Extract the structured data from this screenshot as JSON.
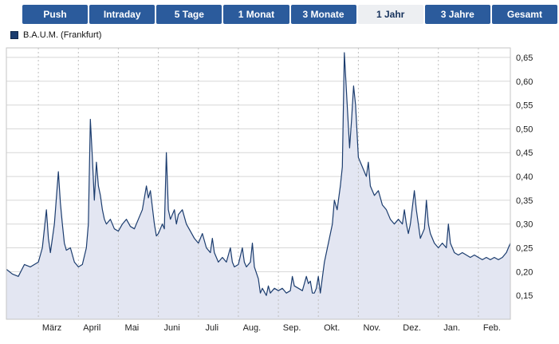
{
  "tabs": {
    "active_index": 5,
    "items": [
      {
        "label": "Push"
      },
      {
        "label": "Intraday"
      },
      {
        "label": "5 Tage"
      },
      {
        "label": "1 Monat"
      },
      {
        "label": "3 Monate"
      },
      {
        "label": "1 Jahr"
      },
      {
        "label": "3 Jahre"
      },
      {
        "label": "Gesamt"
      }
    ]
  },
  "legend": {
    "label": "B.A.U.M. (Frankfurt)"
  },
  "colors": {
    "tab_bg": "#2b5b9c",
    "tab_text": "#ffffff",
    "tab_active_bg": "#edeff2",
    "tab_active_text": "#16325c",
    "line": "#1b3c6e",
    "fill": "#e3e6f2",
    "grid": "#d7d7d7",
    "vgrid": "#bfbfbf",
    "frame": "#c6c6c6",
    "axis_text": "#222222"
  },
  "chart_data": {
    "type": "area",
    "title": "B.A.U.M. (Frankfurt)",
    "series_name": "B.A.U.M. (Frankfurt)",
    "xlabel": "",
    "ylabel": "",
    "range_selected": "1 Jahr",
    "x_labels": [
      "März",
      "April",
      "Mai",
      "Juni",
      "Juli",
      "Aug.",
      "Sep.",
      "Okt.",
      "Nov.",
      "Dez.",
      "Jan.",
      "Feb."
    ],
    "y_ticks": [
      0.65,
      0.6,
      0.55,
      0.5,
      0.45,
      0.4,
      0.35,
      0.3,
      0.25,
      0.2,
      0.15
    ],
    "y_tick_labels": [
      "0,65",
      "0,60",
      "0,55",
      "0,50",
      "0,45",
      "0,40",
      "0,35",
      "0,30",
      "0,25",
      "0,20",
      "0,15"
    ],
    "ylim": [
      0.1,
      0.67
    ],
    "xlim": [
      0,
      12.6
    ],
    "month_boundaries": [
      0.8,
      1.8,
      2.8,
      3.8,
      4.8,
      5.8,
      6.8,
      7.8,
      8.8,
      9.8,
      10.8,
      11.8
    ],
    "points": [
      [
        0.0,
        0.205
      ],
      [
        0.15,
        0.195
      ],
      [
        0.3,
        0.19
      ],
      [
        0.45,
        0.215
      ],
      [
        0.6,
        0.21
      ],
      [
        0.7,
        0.215
      ],
      [
        0.8,
        0.22
      ],
      [
        0.9,
        0.25
      ],
      [
        1.0,
        0.33
      ],
      [
        1.05,
        0.27
      ],
      [
        1.1,
        0.24
      ],
      [
        1.2,
        0.3
      ],
      [
        1.3,
        0.41
      ],
      [
        1.35,
        0.345
      ],
      [
        1.4,
        0.3
      ],
      [
        1.45,
        0.26
      ],
      [
        1.5,
        0.245
      ],
      [
        1.6,
        0.25
      ],
      [
        1.65,
        0.235
      ],
      [
        1.7,
        0.22
      ],
      [
        1.8,
        0.21
      ],
      [
        1.9,
        0.215
      ],
      [
        2.0,
        0.25
      ],
      [
        2.05,
        0.3
      ],
      [
        2.1,
        0.52
      ],
      [
        2.15,
        0.44
      ],
      [
        2.2,
        0.35
      ],
      [
        2.25,
        0.43
      ],
      [
        2.3,
        0.38
      ],
      [
        2.35,
        0.36
      ],
      [
        2.4,
        0.33
      ],
      [
        2.45,
        0.31
      ],
      [
        2.5,
        0.3
      ],
      [
        2.6,
        0.31
      ],
      [
        2.7,
        0.29
      ],
      [
        2.8,
        0.285
      ],
      [
        2.9,
        0.3
      ],
      [
        3.0,
        0.31
      ],
      [
        3.1,
        0.295
      ],
      [
        3.2,
        0.29
      ],
      [
        3.3,
        0.31
      ],
      [
        3.4,
        0.33
      ],
      [
        3.5,
        0.38
      ],
      [
        3.55,
        0.355
      ],
      [
        3.6,
        0.37
      ],
      [
        3.7,
        0.3
      ],
      [
        3.75,
        0.275
      ],
      [
        3.8,
        0.28
      ],
      [
        3.9,
        0.3
      ],
      [
        3.95,
        0.29
      ],
      [
        4.0,
        0.45
      ],
      [
        4.05,
        0.33
      ],
      [
        4.1,
        0.31
      ],
      [
        4.2,
        0.33
      ],
      [
        4.25,
        0.3
      ],
      [
        4.3,
        0.32
      ],
      [
        4.4,
        0.33
      ],
      [
        4.5,
        0.3
      ],
      [
        4.6,
        0.285
      ],
      [
        4.7,
        0.27
      ],
      [
        4.8,
        0.26
      ],
      [
        4.9,
        0.28
      ],
      [
        5.0,
        0.25
      ],
      [
        5.1,
        0.24
      ],
      [
        5.15,
        0.27
      ],
      [
        5.2,
        0.24
      ],
      [
        5.3,
        0.22
      ],
      [
        5.4,
        0.23
      ],
      [
        5.5,
        0.22
      ],
      [
        5.6,
        0.25
      ],
      [
        5.65,
        0.22
      ],
      [
        5.7,
        0.21
      ],
      [
        5.8,
        0.215
      ],
      [
        5.9,
        0.25
      ],
      [
        5.95,
        0.22
      ],
      [
        6.0,
        0.21
      ],
      [
        6.1,
        0.22
      ],
      [
        6.15,
        0.26
      ],
      [
        6.2,
        0.21
      ],
      [
        6.3,
        0.185
      ],
      [
        6.35,
        0.155
      ],
      [
        6.4,
        0.165
      ],
      [
        6.5,
        0.15
      ],
      [
        6.55,
        0.17
      ],
      [
        6.6,
        0.155
      ],
      [
        6.7,
        0.165
      ],
      [
        6.8,
        0.16
      ],
      [
        6.9,
        0.165
      ],
      [
        7.0,
        0.155
      ],
      [
        7.1,
        0.16
      ],
      [
        7.15,
        0.19
      ],
      [
        7.2,
        0.17
      ],
      [
        7.3,
        0.165
      ],
      [
        7.4,
        0.16
      ],
      [
        7.5,
        0.19
      ],
      [
        7.55,
        0.175
      ],
      [
        7.6,
        0.18
      ],
      [
        7.65,
        0.155
      ],
      [
        7.7,
        0.155
      ],
      [
        7.75,
        0.165
      ],
      [
        7.8,
        0.19
      ],
      [
        7.85,
        0.155
      ],
      [
        7.95,
        0.22
      ],
      [
        8.05,
        0.26
      ],
      [
        8.15,
        0.3
      ],
      [
        8.2,
        0.35
      ],
      [
        8.27,
        0.33
      ],
      [
        8.35,
        0.38
      ],
      [
        8.4,
        0.42
      ],
      [
        8.45,
        0.66
      ],
      [
        8.52,
        0.55
      ],
      [
        8.58,
        0.46
      ],
      [
        8.63,
        0.52
      ],
      [
        8.68,
        0.59
      ],
      [
        8.73,
        0.55
      ],
      [
        8.8,
        0.44
      ],
      [
        8.9,
        0.42
      ],
      [
        9.0,
        0.4
      ],
      [
        9.05,
        0.43
      ],
      [
        9.1,
        0.38
      ],
      [
        9.2,
        0.36
      ],
      [
        9.3,
        0.37
      ],
      [
        9.4,
        0.34
      ],
      [
        9.5,
        0.33
      ],
      [
        9.6,
        0.31
      ],
      [
        9.7,
        0.3
      ],
      [
        9.8,
        0.31
      ],
      [
        9.9,
        0.3
      ],
      [
        9.95,
        0.33
      ],
      [
        10.0,
        0.3
      ],
      [
        10.05,
        0.28
      ],
      [
        10.1,
        0.3
      ],
      [
        10.2,
        0.37
      ],
      [
        10.25,
        0.33
      ],
      [
        10.3,
        0.3
      ],
      [
        10.35,
        0.27
      ],
      [
        10.45,
        0.29
      ],
      [
        10.5,
        0.35
      ],
      [
        10.55,
        0.3
      ],
      [
        10.6,
        0.28
      ],
      [
        10.7,
        0.26
      ],
      [
        10.8,
        0.25
      ],
      [
        10.9,
        0.26
      ],
      [
        11.0,
        0.25
      ],
      [
        11.05,
        0.3
      ],
      [
        11.1,
        0.26
      ],
      [
        11.2,
        0.24
      ],
      [
        11.3,
        0.235
      ],
      [
        11.4,
        0.24
      ],
      [
        11.5,
        0.235
      ],
      [
        11.6,
        0.23
      ],
      [
        11.7,
        0.235
      ],
      [
        11.8,
        0.23
      ],
      [
        11.9,
        0.225
      ],
      [
        12.0,
        0.23
      ],
      [
        12.1,
        0.225
      ],
      [
        12.2,
        0.23
      ],
      [
        12.3,
        0.225
      ],
      [
        12.4,
        0.23
      ],
      [
        12.5,
        0.24
      ],
      [
        12.6,
        0.26
      ]
    ]
  }
}
